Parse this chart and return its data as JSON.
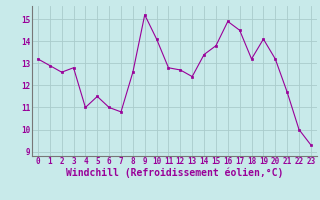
{
  "x": [
    0,
    1,
    2,
    3,
    4,
    5,
    6,
    7,
    8,
    9,
    10,
    11,
    12,
    13,
    14,
    15,
    16,
    17,
    18,
    19,
    20,
    21,
    22,
    23
  ],
  "y": [
    13.2,
    12.9,
    12.6,
    12.8,
    11.0,
    11.5,
    11.0,
    10.8,
    12.6,
    15.2,
    14.1,
    12.8,
    12.7,
    12.4,
    13.4,
    13.8,
    14.9,
    14.5,
    13.2,
    14.1,
    13.2,
    11.7,
    10.0,
    9.3
  ],
  "line_color": "#990099",
  "marker_color": "#990099",
  "bg_color": "#c8eaea",
  "grid_color": "#aacccc",
  "axis_color": "#777777",
  "text_color": "#990099",
  "xlabel": "Windchill (Refroidissement éolien,°C)",
  "ylim": [
    8.8,
    15.6
  ],
  "xlim": [
    -0.5,
    23.5
  ],
  "yticks": [
    9,
    10,
    11,
    12,
    13,
    14,
    15
  ],
  "xticks": [
    0,
    1,
    2,
    3,
    4,
    5,
    6,
    7,
    8,
    9,
    10,
    11,
    12,
    13,
    14,
    15,
    16,
    17,
    18,
    19,
    20,
    21,
    22,
    23
  ],
  "tick_fontsize": 5.5,
  "xlabel_fontsize": 7.0
}
